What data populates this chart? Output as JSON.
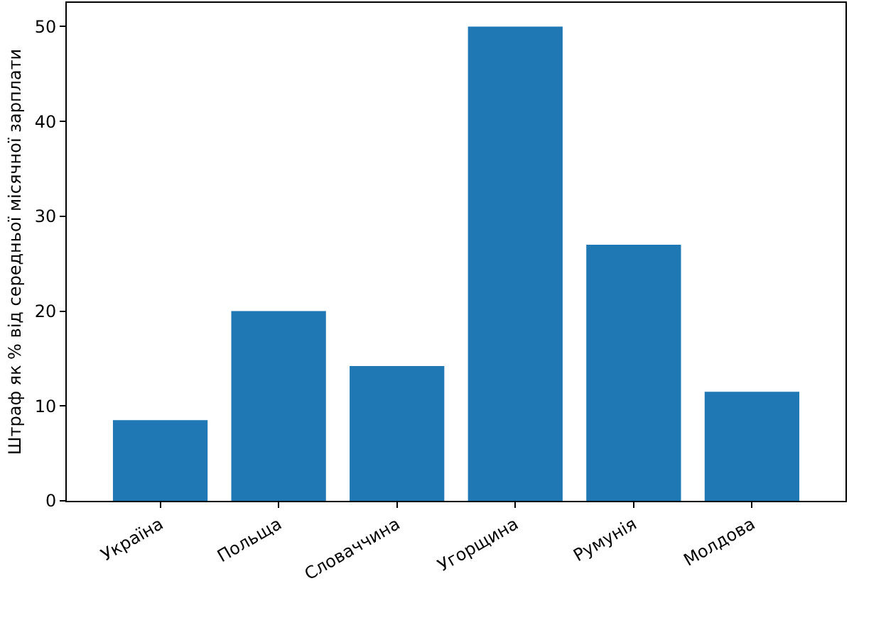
{
  "chart_data": {
    "type": "bar",
    "ylabel": "Штраф як % від середньої місячної зарплати",
    "categories": [
      "Україна",
      "Польща",
      "Словаччина",
      "Угорщина",
      "Румунія",
      "Молдова"
    ],
    "values": [
      8.5,
      20,
      14.2,
      50,
      27,
      11.5
    ],
    "color": "#1f77b4",
    "ylim": [
      0,
      52.5
    ],
    "yticks": [
      0,
      10,
      20,
      30,
      40,
      50
    ]
  }
}
